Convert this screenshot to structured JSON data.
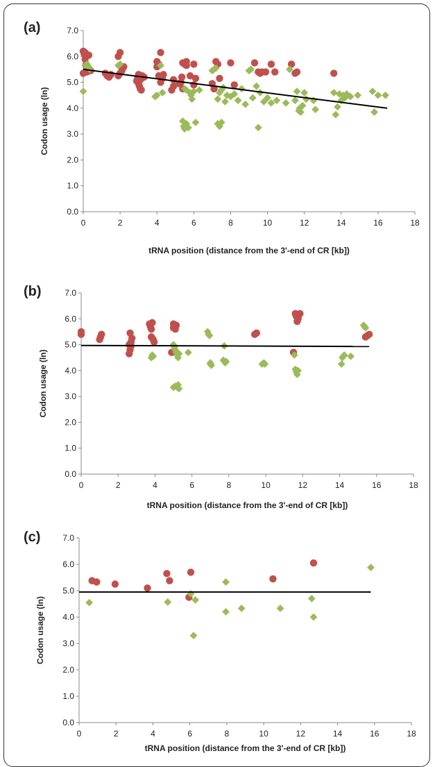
{
  "chart_data": [
    {
      "type": "scatter",
      "panel_label": "(a)",
      "xlabel": "tRNA position (distance  from the 3'-end of CR [kb])",
      "ylabel": "Codon usage (ln)",
      "xlim": [
        0,
        18
      ],
      "ylim": [
        0,
        7
      ],
      "xticks": [
        "0",
        "2",
        "4",
        "6",
        "8",
        "10",
        "12",
        "14",
        "16",
        "18"
      ],
      "yticks": [
        "0.0",
        "1.0",
        "2.0",
        "3.0",
        "4.0",
        "5.0",
        "6.0",
        "7.0"
      ],
      "trendline": {
        "x": [
          0,
          16.5
        ],
        "y": [
          5.5,
          4.0
        ]
      },
      "series": [
        {
          "marker": "circle",
          "color": "#c0504d",
          "points": [
            [
              0,
              6.2
            ],
            [
              0.05,
              6.1
            ],
            [
              0.1,
              5.9
            ],
            [
              0.15,
              5.7
            ],
            [
              0.2,
              5.55
            ],
            [
              0,
              5.35
            ],
            [
              0.2,
              5.4
            ],
            [
              0.4,
              5.45
            ],
            [
              0.1,
              6.15
            ],
            [
              0.3,
              6.05
            ],
            [
              1.2,
              5.35
            ],
            [
              1.3,
              5.25
            ],
            [
              1.4,
              5.2
            ],
            [
              1.5,
              5.3
            ],
            [
              1.9,
              6.0
            ],
            [
              2.0,
              6.15
            ],
            [
              2.1,
              5.45
            ],
            [
              2.2,
              5.6
            ],
            [
              1.9,
              5.25
            ],
            [
              2.0,
              5.35
            ],
            [
              2.9,
              5.05
            ],
            [
              3.0,
              4.95
            ],
            [
              3.05,
              4.85
            ],
            [
              3.1,
              4.75
            ],
            [
              3.2,
              5.25
            ],
            [
              3.3,
              5.2
            ],
            [
              3.1,
              5.1
            ],
            [
              3.0,
              5.3
            ],
            [
              3.15,
              4.7
            ],
            [
              2.95,
              5.15
            ],
            [
              4.0,
              5.8
            ],
            [
              4.1,
              5.7
            ],
            [
              4.2,
              6.15
            ],
            [
              4.0,
              5.6
            ],
            [
              4.1,
              5.25
            ],
            [
              4.3,
              5.15
            ],
            [
              4.2,
              5.0
            ],
            [
              4.35,
              5.3
            ],
            [
              4.8,
              4.7
            ],
            [
              4.9,
              4.85
            ],
            [
              4.9,
              5.1
            ],
            [
              5.2,
              4.95
            ],
            [
              5.3,
              5.0
            ],
            [
              5.35,
              5.2
            ],
            [
              5.4,
              5.75
            ],
            [
              5.5,
              5.7
            ],
            [
              5.6,
              5.8
            ],
            [
              5.6,
              5.65
            ],
            [
              5.4,
              4.75
            ],
            [
              5.8,
              5.25
            ],
            [
              6.0,
              4.9
            ],
            [
              6.0,
              5.7
            ],
            [
              6.1,
              5.15
            ],
            [
              7.0,
              4.95
            ],
            [
              7.1,
              4.75
            ],
            [
              7.2,
              5.8
            ],
            [
              7.3,
              5.7
            ],
            [
              7.4,
              5.15
            ],
            [
              8.0,
              5.75
            ],
            [
              8.2,
              4.9
            ],
            [
              9.3,
              5.75
            ],
            [
              9.5,
              5.4
            ],
            [
              9.6,
              5.35
            ],
            [
              9.7,
              5.4
            ],
            [
              9.9,
              5.4
            ],
            [
              10.2,
              5.7
            ],
            [
              10.4,
              5.4
            ],
            [
              11.3,
              5.7
            ],
            [
              11.5,
              5.35
            ],
            [
              11.6,
              5.4
            ],
            [
              13.6,
              5.35
            ]
          ]
        },
        {
          "marker": "diamond",
          "color": "#9bbb59",
          "points": [
            [
              0,
              4.65
            ],
            [
              0.1,
              5.65
            ],
            [
              0.2,
              5.7
            ],
            [
              0.3,
              5.6
            ],
            [
              0.35,
              5.5
            ],
            [
              1.9,
              5.65
            ],
            [
              2.0,
              5.7
            ],
            [
              3.9,
              4.45
            ],
            [
              4.0,
              4.5
            ],
            [
              4.2,
              5.65
            ],
            [
              4.3,
              4.6
            ],
            [
              5.4,
              3.5
            ],
            [
              5.45,
              3.3
            ],
            [
              5.5,
              3.2
            ],
            [
              5.6,
              3.4
            ],
            [
              5.7,
              3.25
            ],
            [
              5.5,
              4.75
            ],
            [
              5.6,
              4.7
            ],
            [
              5.8,
              4.6
            ],
            [
              5.85,
              4.5
            ],
            [
              5.9,
              4.35
            ],
            [
              6.0,
              4.65
            ],
            [
              6.1,
              3.45
            ],
            [
              6.3,
              4.7
            ],
            [
              7.0,
              5.45
            ],
            [
              7.1,
              5.5
            ],
            [
              7.2,
              5.55
            ],
            [
              7.3,
              3.4
            ],
            [
              7.4,
              3.3
            ],
            [
              7.5,
              3.45
            ],
            [
              7.3,
              4.35
            ],
            [
              7.4,
              4.6
            ],
            [
              7.5,
              4.7
            ],
            [
              7.6,
              4.8
            ],
            [
              7.7,
              4.25
            ],
            [
              7.8,
              4.5
            ],
            [
              8.0,
              4.45
            ],
            [
              8.2,
              4.55
            ],
            [
              8.4,
              4.3
            ],
            [
              8.6,
              4.75
            ],
            [
              8.8,
              4.15
            ],
            [
              9.0,
              5.45
            ],
            [
              9.1,
              5.5
            ],
            [
              9.2,
              4.4
            ],
            [
              9.4,
              4.85
            ],
            [
              9.5,
              3.25
            ],
            [
              9.6,
              4.6
            ],
            [
              9.8,
              4.25
            ],
            [
              10.0,
              4.4
            ],
            [
              10.2,
              4.2
            ],
            [
              10.5,
              4.3
            ],
            [
              11.0,
              4.2
            ],
            [
              11.2,
              5.5
            ],
            [
              11.5,
              4.3
            ],
            [
              11.6,
              4.65
            ],
            [
              11.7,
              3.9
            ],
            [
              11.8,
              3.85
            ],
            [
              11.9,
              4.1
            ],
            [
              12.0,
              4.6
            ],
            [
              12.1,
              4.35
            ],
            [
              11.75,
              4.0
            ],
            [
              12.5,
              4.3
            ],
            [
              12.6,
              3.95
            ],
            [
              13.6,
              4.6
            ],
            [
              13.7,
              3.75
            ],
            [
              13.8,
              4.05
            ],
            [
              13.9,
              4.55
            ],
            [
              14.0,
              4.3
            ],
            [
              14.1,
              4.5
            ],
            [
              14.2,
              4.4
            ],
            [
              14.3,
              4.55
            ],
            [
              14.5,
              4.45
            ],
            [
              14.9,
              4.5
            ],
            [
              15.7,
              4.65
            ],
            [
              15.8,
              3.85
            ],
            [
              16.0,
              4.5
            ],
            [
              16.4,
              4.5
            ]
          ]
        }
      ]
    },
    {
      "type": "scatter",
      "panel_label": "(b)",
      "xlabel": "tRNA position (distance  from the 3'-end of CR [kb])",
      "ylabel": "Codon usage (ln)",
      "xlim": [
        0,
        18
      ],
      "ylim": [
        0,
        7
      ],
      "xticks": [
        "0",
        "2",
        "4",
        "6",
        "8",
        "10",
        "12",
        "14",
        "16",
        "18"
      ],
      "yticks": [
        "0.0",
        "1.0",
        "2.0",
        "3.0",
        "4.0",
        "5.0",
        "6.0",
        "7.0"
      ],
      "trendline": {
        "x": [
          0,
          15.6
        ],
        "y": [
          4.97,
          4.93
        ]
      },
      "series": [
        {
          "marker": "circle",
          "color": "#c0504d",
          "points": [
            [
              0,
              5.4
            ],
            [
              0,
              5.5
            ],
            [
              1.0,
              5.2
            ],
            [
              1.05,
              5.3
            ],
            [
              1.1,
              5.4
            ],
            [
              2.6,
              4.65
            ],
            [
              2.65,
              4.8
            ],
            [
              2.7,
              4.95
            ],
            [
              2.7,
              5.1
            ],
            [
              2.75,
              5.25
            ],
            [
              2.65,
              5.45
            ],
            [
              2.6,
              5.0
            ],
            [
              3.7,
              5.8
            ],
            [
              3.75,
              5.7
            ],
            [
              3.8,
              5.6
            ],
            [
              3.85,
              5.85
            ],
            [
              3.8,
              5.3
            ],
            [
              3.9,
              5.2
            ],
            [
              3.95,
              5.1
            ],
            [
              3.85,
              5.25
            ],
            [
              4.9,
              4.7
            ],
            [
              5.0,
              5.8
            ],
            [
              5.05,
              5.7
            ],
            [
              5.1,
              5.6
            ],
            [
              5.15,
              5.75
            ],
            [
              5.0,
              5.65
            ],
            [
              9.4,
              5.4
            ],
            [
              9.5,
              5.45
            ],
            [
              11.5,
              4.7
            ],
            [
              11.6,
              6.2
            ],
            [
              11.65,
              6.1
            ],
            [
              11.7,
              5.9
            ],
            [
              11.75,
              6.0
            ],
            [
              11.8,
              6.15
            ],
            [
              11.85,
              6.2
            ],
            [
              15.4,
              5.3
            ],
            [
              15.5,
              5.35
            ],
            [
              15.6,
              5.4
            ]
          ]
        },
        {
          "marker": "diamond",
          "color": "#9bbb59",
          "points": [
            [
              3.8,
              4.5
            ],
            [
              3.85,
              4.6
            ],
            [
              3.9,
              4.55
            ],
            [
              5.0,
              3.35
            ],
            [
              5.1,
              3.4
            ],
            [
              5.2,
              3.35
            ],
            [
              5.25,
              3.45
            ],
            [
              5.3,
              3.3
            ],
            [
              5.0,
              5.0
            ],
            [
              5.05,
              4.9
            ],
            [
              5.1,
              4.8
            ],
            [
              5.15,
              4.7
            ],
            [
              5.2,
              4.6
            ],
            [
              5.25,
              4.5
            ],
            [
              5.3,
              4.65
            ],
            [
              5.8,
              4.7
            ],
            [
              6.85,
              5.5
            ],
            [
              6.9,
              5.4
            ],
            [
              6.95,
              5.35
            ],
            [
              7.0,
              4.3
            ],
            [
              7.05,
              4.2
            ],
            [
              7.0,
              4.25
            ],
            [
              7.75,
              4.95
            ],
            [
              7.7,
              4.4
            ],
            [
              7.8,
              4.3
            ],
            [
              7.85,
              4.35
            ],
            [
              9.8,
              4.25
            ],
            [
              9.9,
              4.3
            ],
            [
              9.95,
              4.25
            ],
            [
              11.6,
              4.05
            ],
            [
              11.65,
              3.95
            ],
            [
              11.7,
              3.85
            ],
            [
              11.75,
              4.0
            ],
            [
              11.55,
              4.6
            ],
            [
              14.1,
              4.25
            ],
            [
              14.15,
              4.5
            ],
            [
              14.2,
              4.55
            ],
            [
              14.25,
              4.6
            ],
            [
              14.6,
              4.55
            ],
            [
              15.3,
              5.75
            ],
            [
              15.35,
              5.7
            ],
            [
              15.4,
              5.65
            ]
          ]
        }
      ]
    },
    {
      "type": "scatter",
      "panel_label": "(c)",
      "xlabel": "tRNA position (distance  from the 3'-end of CR [kb])",
      "ylabel": "Codon usage (ln)",
      "xlim": [
        0,
        18
      ],
      "ylim": [
        0,
        7
      ],
      "xticks": [
        "0",
        "2",
        "4",
        "6",
        "8",
        "10",
        "12",
        "14",
        "16",
        "18"
      ],
      "yticks": [
        "0.0",
        "1.0",
        "2.0",
        "3.0",
        "4.0",
        "5.0",
        "6.0",
        "7.0"
      ],
      "trendline": {
        "x": [
          0,
          15.8
        ],
        "y": [
          4.95,
          4.95
        ]
      },
      "series": [
        {
          "marker": "circle",
          "color": "#c0504d",
          "points": [
            [
              0.7,
              5.38
            ],
            [
              0.95,
              5.33
            ],
            [
              1.95,
              5.25
            ],
            [
              3.7,
              5.1
            ],
            [
              4.75,
              5.65
            ],
            [
              4.9,
              5.38
            ],
            [
              5.95,
              4.75
            ],
            [
              6.05,
              5.7
            ],
            [
              10.5,
              5.45
            ],
            [
              12.7,
              6.05
            ]
          ]
        },
        {
          "marker": "diamond",
          "color": "#9bbb59",
          "points": [
            [
              0.55,
              4.55
            ],
            [
              4.8,
              4.57
            ],
            [
              6.05,
              4.88
            ],
            [
              6.2,
              3.3
            ],
            [
              6.3,
              4.65
            ],
            [
              7.95,
              5.33
            ],
            [
              7.95,
              4.2
            ],
            [
              8.8,
              4.33
            ],
            [
              10.9,
              4.33
            ],
            [
              12.6,
              4.7
            ],
            [
              12.7,
              4.0
            ],
            [
              15.8,
              5.88
            ]
          ]
        }
      ]
    }
  ]
}
